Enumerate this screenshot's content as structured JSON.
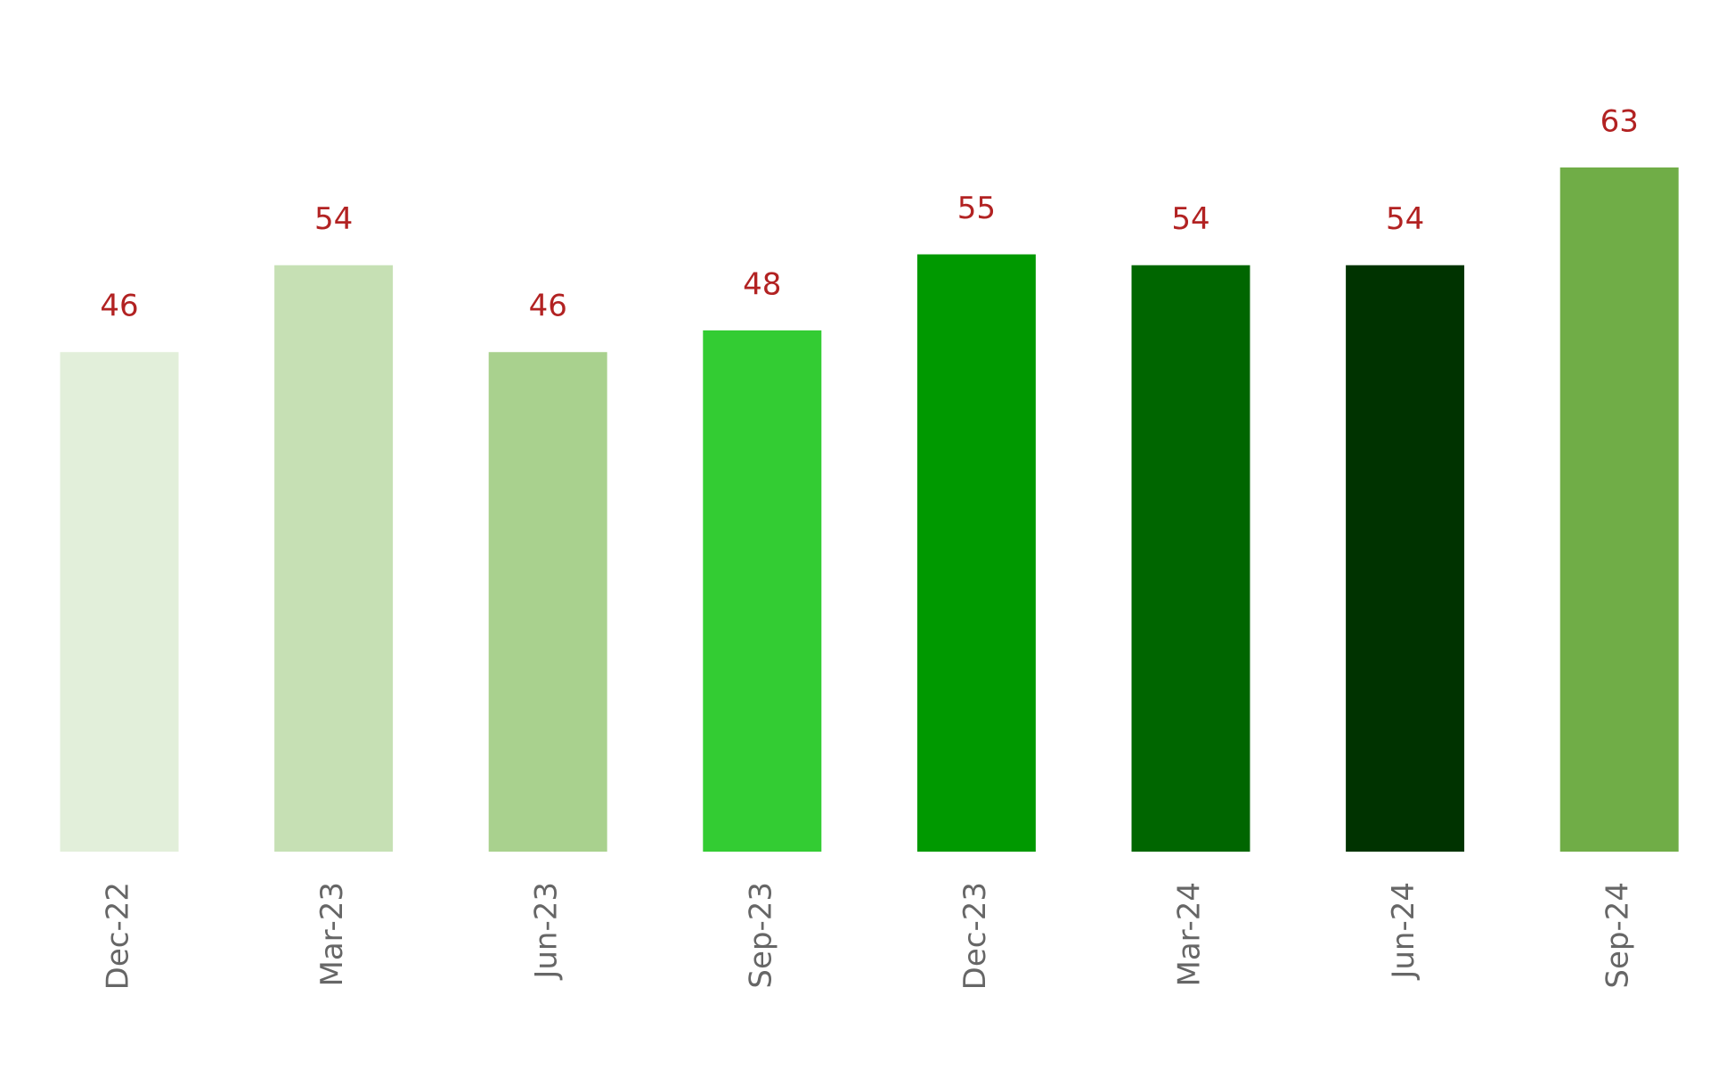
{
  "chart_data": {
    "type": "bar",
    "categories": [
      "Dec-22",
      "Mar-23",
      "Jun-23",
      "Sep-23",
      "Dec-23",
      "Mar-24",
      "Jun-24",
      "Sep-24"
    ],
    "values": [
      46,
      54,
      46,
      48,
      55,
      54,
      54,
      63
    ],
    "colors": [
      "#e2efda",
      "#c6e0b4",
      "#a9d18e",
      "#33cc33",
      "#009900",
      "#006600",
      "#003300",
      "#70ad47"
    ],
    "value_label_color": "#b22222"
  }
}
